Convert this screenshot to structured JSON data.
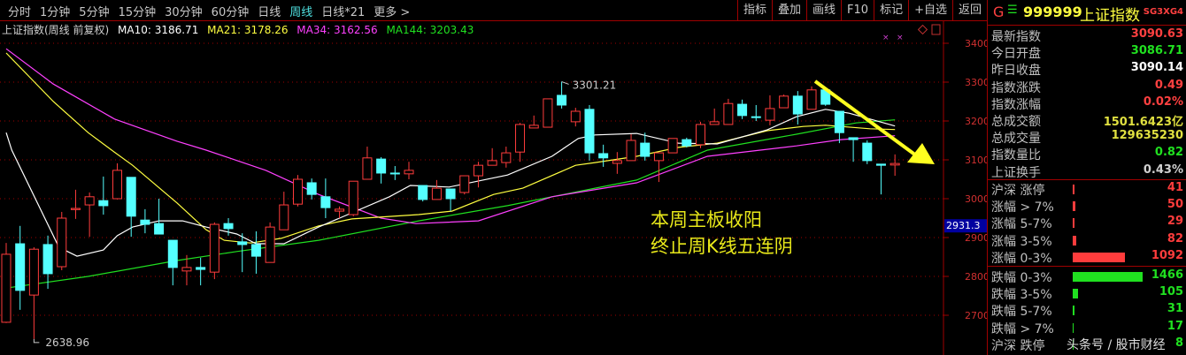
{
  "toolbar": {
    "tabs": [
      "分时",
      "1分钟",
      "5分钟",
      "15分钟",
      "30分钟",
      "60分钟",
      "日线",
      "周线",
      "日线*21",
      "更多 >"
    ],
    "active_tab": "周线",
    "tools": [
      "指标",
      "叠加",
      "画线",
      "F10",
      "标记",
      "+自选",
      "返回"
    ]
  },
  "legend": {
    "title": "上证指数(周线 前复权)",
    "ma10": "MA10: 3186.71",
    "ma21": "MA21: 3178.26",
    "ma34": "MA34: 3162.56",
    "ma144": "MA144: 3203.43"
  },
  "colors": {
    "up": "#ff3c3c",
    "down": "#54ffff",
    "ma10": "#ffffff",
    "ma21": "#ffff40",
    "ma34": "#ff40ff",
    "ma144": "#20e020",
    "grid": "#a00000",
    "arrow": "#ffff20"
  },
  "chart_data": {
    "type": "candlestick",
    "ylim": [
      2620,
      3460
    ],
    "yticks": [
      2700,
      2800,
      2900,
      3000,
      3100,
      3200,
      3300,
      3400
    ],
    "current_price_label": "2931.3",
    "high_label": "3301.21",
    "low_label": "2638.96",
    "candles_ohlc": [
      [
        2682,
        2886,
        2680,
        2857
      ],
      [
        2884,
        2930,
        2714,
        2764
      ],
      [
        2752,
        2875,
        2638.96,
        2870
      ],
      [
        2882,
        2905,
        2768,
        2807
      ],
      [
        2825,
        2966,
        2816,
        2950
      ],
      [
        2972,
        3023,
        2948,
        2975
      ],
      [
        2984,
        3016,
        2902,
        3005
      ],
      [
        2995,
        3057,
        2959,
        2982
      ],
      [
        3000,
        3091,
        2998,
        3073
      ],
      [
        3055,
        3055,
        2902,
        2955
      ],
      [
        2945,
        2973,
        2911,
        2934
      ],
      [
        2936,
        3000,
        2909,
        2909
      ],
      [
        2893,
        2893,
        2777,
        2823
      ],
      [
        2814,
        2855,
        2777,
        2823
      ],
      [
        2823,
        2848,
        2777,
        2818
      ],
      [
        2811,
        2939,
        2793,
        2934
      ],
      [
        2936,
        2950,
        2905,
        2923
      ],
      [
        2889,
        2911,
        2811,
        2882
      ],
      [
        2882,
        2916,
        2807,
        2852
      ],
      [
        2836,
        2939,
        2836,
        2927
      ],
      [
        2920,
        3018,
        2920,
        2984
      ],
      [
        2986,
        3061,
        2980,
        3050
      ],
      [
        3041,
        3052,
        2998,
        3011
      ],
      [
        3005,
        3052,
        2950,
        2977
      ],
      [
        2968,
        2980,
        2950,
        2973
      ],
      [
        2959,
        3045,
        2955,
        3045
      ],
      [
        3050,
        3134,
        3050,
        3105
      ],
      [
        3102,
        3107,
        3039,
        3066
      ],
      [
        3066,
        3084,
        3048,
        3064
      ],
      [
        3064,
        3095,
        3050,
        3073
      ],
      [
        3034,
        3034,
        2993,
        2998
      ],
      [
        2998,
        3048,
        2998,
        3027
      ],
      [
        3025,
        3025,
        2968,
        3000
      ],
      [
        3016,
        3059,
        3011,
        3059
      ],
      [
        3059,
        3095,
        3029,
        3086
      ],
      [
        3086,
        3130,
        3086,
        3098
      ],
      [
        3093,
        3134,
        3080,
        3118
      ],
      [
        3120,
        3195,
        3095,
        3191
      ],
      [
        3182,
        3214,
        3182,
        3189
      ],
      [
        3184,
        3257,
        3184,
        3257
      ],
      [
        3266,
        3301.21,
        3232,
        3241
      ],
      [
        3198,
        3234,
        3186,
        3225
      ],
      [
        3230,
        3241,
        3098,
        3118
      ],
      [
        3116,
        3139,
        3082,
        3105
      ],
      [
        3091,
        3120,
        3064,
        3098
      ],
      [
        3098,
        3166,
        3098,
        3150
      ],
      [
        3143,
        3170,
        3098,
        3109
      ],
      [
        3098,
        3118,
        3043,
        3118
      ],
      [
        3118,
        3155,
        3118,
        3155
      ],
      [
        3152,
        3157,
        3132,
        3136
      ],
      [
        3139,
        3198,
        3130,
        3191
      ],
      [
        3191,
        3232,
        3191,
        3198
      ],
      [
        3191,
        3257,
        3191,
        3245
      ],
      [
        3243,
        3255,
        3205,
        3214
      ],
      [
        3211,
        3241,
        3200,
        3209
      ],
      [
        3202,
        3266,
        3189,
        3232
      ],
      [
        3234,
        3268,
        3234,
        3264
      ],
      [
        3264,
        3277,
        3191,
        3218
      ],
      [
        3230,
        3289,
        3230,
        3280
      ],
      [
        3280,
        3284,
        3239,
        3243
      ],
      [
        3225,
        3225,
        3143,
        3170
      ],
      [
        3157,
        3157,
        3095,
        3152
      ],
      [
        3143,
        3150,
        3089,
        3098
      ],
      [
        3089,
        3089,
        3011,
        3086
      ],
      [
        3086.71,
        3114,
        3059,
        3090.63
      ]
    ],
    "moving_averages": {
      "ma10": [
        [
          0,
          3170
        ],
        [
          0.4,
          3125
        ],
        [
          3.8,
          2875
        ],
        [
          5.1,
          2852
        ],
        [
          7,
          2868
        ],
        [
          8,
          2905
        ],
        [
          9.1,
          2927
        ],
        [
          11,
          2943
        ],
        [
          12.7,
          2943
        ],
        [
          14.4,
          2927
        ],
        [
          16.6,
          2909
        ],
        [
          18,
          2884
        ],
        [
          20,
          2884
        ],
        [
          22.5,
          2927
        ],
        [
          24,
          2950
        ],
        [
          27.6,
          3005
        ],
        [
          29.1,
          3034
        ],
        [
          31.9,
          3030
        ],
        [
          36.1,
          3061
        ],
        [
          39.3,
          3109
        ],
        [
          41.2,
          3155
        ],
        [
          42.4,
          3164
        ],
        [
          45.4,
          3168
        ],
        [
          48.4,
          3143
        ],
        [
          51.2,
          3141
        ],
        [
          54.8,
          3177
        ],
        [
          56.9,
          3211
        ],
        [
          59,
          3230
        ],
        [
          60.7,
          3220
        ],
        [
          64,
          3187
        ]
      ],
      "ma21": [
        [
          0,
          3375
        ],
        [
          3.4,
          3250
        ],
        [
          5.9,
          3170
        ],
        [
          7.6,
          3125
        ],
        [
          9.1,
          3086
        ],
        [
          12.3,
          2989
        ],
        [
          14.4,
          2920
        ],
        [
          15.7,
          2893
        ],
        [
          17.6,
          2886
        ],
        [
          19.8,
          2898
        ],
        [
          22.5,
          2930
        ],
        [
          24.9,
          2948
        ],
        [
          29.7,
          2959
        ],
        [
          32.1,
          2968
        ],
        [
          35.1,
          3011
        ],
        [
          37.2,
          3027
        ],
        [
          41,
          3086
        ],
        [
          42.4,
          3093
        ],
        [
          45.4,
          3109
        ],
        [
          48.4,
          3132
        ],
        [
          51.2,
          3143
        ],
        [
          54.8,
          3175
        ],
        [
          57.4,
          3186
        ],
        [
          59,
          3189
        ],
        [
          62.2,
          3180
        ],
        [
          64,
          3178
        ]
      ],
      "ma34": [
        [
          0,
          3386
        ],
        [
          3.4,
          3295
        ],
        [
          7.8,
          3205
        ],
        [
          12.3,
          3148
        ],
        [
          14.4,
          3125
        ],
        [
          18.7,
          3073
        ],
        [
          22.5,
          3011
        ],
        [
          27,
          2950
        ],
        [
          29.5,
          2936
        ],
        [
          34,
          2943
        ],
        [
          39.3,
          3005
        ],
        [
          45.4,
          3041
        ],
        [
          50.5,
          3109
        ],
        [
          56.9,
          3136
        ],
        [
          60.1,
          3152
        ],
        [
          64,
          3162
        ]
      ],
      "ma144": [
        [
          0,
          2770
        ],
        [
          5.9,
          2800
        ],
        [
          12.3,
          2841
        ],
        [
          16.6,
          2864
        ],
        [
          22.5,
          2893
        ],
        [
          29.7,
          2943
        ],
        [
          36.1,
          2982
        ],
        [
          42.4,
          3027
        ],
        [
          45.4,
          3048
        ],
        [
          50.5,
          3125
        ],
        [
          56.9,
          3166
        ],
        [
          61.2,
          3195
        ],
        [
          64,
          3203
        ]
      ]
    }
  },
  "annotation": {
    "line1": "本周主板收阳",
    "line2": "终止周K线五连阴"
  },
  "panel": {
    "header": {
      "g": "G",
      "menu": "☰",
      "code": "999999",
      "name": "上证指数",
      "tag": "SG3XG4"
    },
    "quotes": [
      {
        "label": "最新指数",
        "value": "3090.63",
        "color": "#ff4040"
      },
      {
        "label": "今日开盘",
        "value": "3086.71",
        "color": "#20e020"
      },
      {
        "label": "昨日收盘",
        "value": "3090.14",
        "color": "#ffffff"
      },
      {
        "label": "指数涨跌",
        "value": "0.49",
        "color": "#ff4040"
      },
      {
        "label": "指数涨幅",
        "value": "0.02%",
        "color": "#ff4040"
      },
      {
        "label": "总成交额",
        "value": "1501.6423亿",
        "color": "#e0e040"
      },
      {
        "label": "总成交量",
        "value": "129635230",
        "color": "#e0e040"
      },
      {
        "label": "指数量比",
        "value": "0.82",
        "color": "#20e020"
      },
      {
        "label": "上证换手",
        "value": "0.43%",
        "color": "#d0d0d0"
      }
    ],
    "breadth_up": [
      {
        "label": "沪深 涨停",
        "value": "41",
        "count": 41
      },
      {
        "label": "涨幅 > 7%",
        "value": "50",
        "count": 50
      },
      {
        "label": "涨幅 5-7%",
        "value": "29",
        "count": 29
      },
      {
        "label": "涨幅 3-5%",
        "value": "82",
        "count": 82
      },
      {
        "label": "涨幅 0-3%",
        "value": "1092",
        "count": 1092
      }
    ],
    "breadth_down": [
      {
        "label": "跌幅 0-3%",
        "value": "1466",
        "count": 1466
      },
      {
        "label": "跌幅 3-5%",
        "value": "105",
        "count": 105
      },
      {
        "label": "跌幅 5-7%",
        "value": "31",
        "count": 31
      },
      {
        "label": "跌幅 > 7%",
        "value": "17",
        "count": 17
      },
      {
        "label": "沪深 跌停",
        "value": "8",
        "count": 8
      }
    ]
  },
  "watermark": "头条号 / 股市财经"
}
